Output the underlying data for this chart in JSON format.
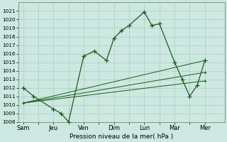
{
  "title": "",
  "xlabel": "Pression niveau de la mer( hPa )",
  "bg_color": "#cce8e0",
  "grid_color": "#aaccc4",
  "line_color": "#1a5c1a",
  "ylim": [
    1008,
    1022
  ],
  "yticks": [
    1008,
    1009,
    1010,
    1011,
    1012,
    1013,
    1014,
    1015,
    1016,
    1017,
    1018,
    1019,
    1020,
    1021
  ],
  "x_labels": [
    "Sam",
    "Jeu",
    "Ven",
    "Dim",
    "Lun",
    "Mar",
    "Mer"
  ],
  "x_positions": [
    0,
    2,
    4,
    6,
    8,
    10,
    12
  ],
  "xlim": [
    -0.3,
    13.3
  ],
  "main_line": {
    "x": [
      0,
      0.7,
      2.0,
      2.5,
      3.0,
      4.0,
      4.7,
      5.5,
      6.0,
      6.5,
      7.0,
      8.0,
      8.5,
      9.0,
      10.0,
      10.5,
      11.0,
      11.5,
      12.0
    ],
    "y": [
      1012,
      1011,
      1009.5,
      1009,
      1008,
      1015.7,
      1016.3,
      1015.2,
      1017.8,
      1018.7,
      1019.3,
      1020.9,
      1019.3,
      1019.5,
      1015.0,
      1013.0,
      1011.0,
      1012.3,
      1015.2
    ]
  },
  "trend_lines": [
    {
      "x": [
        0,
        12
      ],
      "y": [
        1010.2,
        1015.2
      ]
    },
    {
      "x": [
        0,
        12
      ],
      "y": [
        1010.2,
        1013.8
      ]
    },
    {
      "x": [
        0,
        12
      ],
      "y": [
        1010.2,
        1012.8
      ]
    }
  ]
}
